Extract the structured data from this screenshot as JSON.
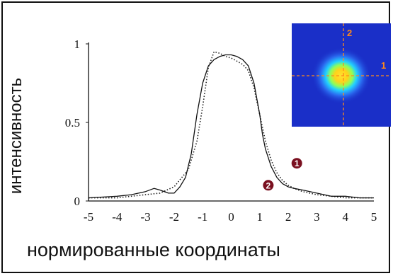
{
  "chart_data": {
    "type": "line",
    "xlabel": "нормированные координаты",
    "ylabel": "интенсивность",
    "xlim": [
      -5,
      5
    ],
    "ylim": [
      0,
      1
    ],
    "x_ticks": [
      "-5",
      "-4",
      "-3",
      "-2",
      "-1",
      "0",
      "1",
      "2",
      "3",
      "4",
      "5"
    ],
    "y_ticks": [
      "0",
      "0.5",
      "1"
    ],
    "series": [
      {
        "name": "1",
        "style": "dotted",
        "color": "#222222",
        "x": [
          -5,
          -4,
          -3.5,
          -3,
          -2.5,
          -2,
          -1.5,
          -1.2,
          -1,
          -0.8,
          -0.6,
          -0.4,
          -0.2,
          0,
          0.2,
          0.4,
          0.6,
          0.8,
          1,
          1.2,
          1.4,
          1.6,
          1.8,
          2,
          2.2,
          2.5,
          3,
          3.5,
          4,
          4.5,
          5
        ],
        "values": [
          0.02,
          0.02,
          0.03,
          0.04,
          0.05,
          0.09,
          0.2,
          0.38,
          0.6,
          0.85,
          0.95,
          0.94,
          0.92,
          0.91,
          0.89,
          0.87,
          0.83,
          0.72,
          0.55,
          0.38,
          0.26,
          0.18,
          0.13,
          0.1,
          0.08,
          0.06,
          0.04,
          0.03,
          0.02,
          0.02,
          0.02
        ]
      },
      {
        "name": "2",
        "style": "solid",
        "color": "#111111",
        "x": [
          -5,
          -4,
          -3.5,
          -3,
          -2.7,
          -2.5,
          -2.2,
          -2,
          -1.8,
          -1.6,
          -1.4,
          -1.2,
          -1,
          -0.8,
          -0.6,
          -0.4,
          -0.2,
          0,
          0.2,
          0.4,
          0.6,
          0.8,
          1,
          1.1,
          1.2,
          1.4,
          1.6,
          1.8,
          2,
          2.2,
          2.5,
          3,
          3.5,
          4,
          4.5,
          5
        ],
        "values": [
          0.02,
          0.03,
          0.04,
          0.06,
          0.08,
          0.07,
          0.05,
          0.05,
          0.09,
          0.15,
          0.3,
          0.55,
          0.75,
          0.86,
          0.9,
          0.92,
          0.93,
          0.93,
          0.92,
          0.9,
          0.86,
          0.75,
          0.55,
          0.42,
          0.33,
          0.22,
          0.15,
          0.11,
          0.09,
          0.08,
          0.07,
          0.05,
          0.03,
          0.03,
          0.02,
          0.02
        ]
      }
    ],
    "markers": [
      {
        "label": "1",
        "x": 2.3,
        "y": 0.24,
        "color": "#7a1020"
      },
      {
        "label": "2",
        "x": 1.3,
        "y": 0.1,
        "color": "#7a1020"
      }
    ],
    "inset": {
      "type": "heatmap",
      "labels": [
        "1",
        "2"
      ],
      "background": "#1a2fc8",
      "crosshair_color": "#ff8a1a"
    },
    "grid": false,
    "legend": "none"
  }
}
